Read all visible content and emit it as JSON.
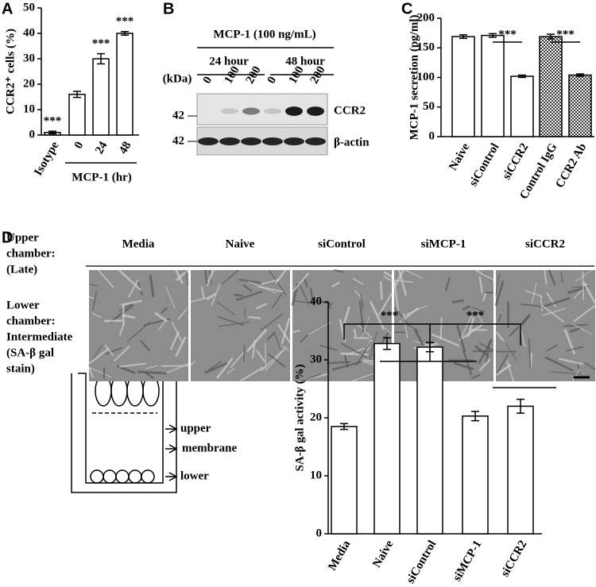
{
  "panel_labels": [
    "A",
    "B",
    "C",
    "D"
  ],
  "chart_data": [
    {
      "type": "bar",
      "categories": [
        "Isotype",
        "0",
        "24",
        "48"
      ],
      "values": [
        1,
        16,
        30,
        40
      ],
      "errors": [
        0.5,
        1.2,
        2,
        0.7
      ],
      "y_label": "CCR2⁺ cells (%)",
      "ylim": [
        0,
        50
      ],
      "yticks": [
        0,
        10,
        20,
        30,
        40,
        50
      ],
      "color": "#ffffff",
      "group_label": "MCP-1 (hr)",
      "annotations": [
        "***",
        "***",
        "***"
      ]
    },
    {
      "type": "bar",
      "categories": [
        "Naive",
        "siControl",
        "siCCR2",
        "Control IgG",
        "CCR2 Ab"
      ],
      "values": [
        169,
        171,
        102,
        169,
        104
      ],
      "errors": [
        3,
        3,
        2,
        4,
        2
      ],
      "y_label": "MCP-1 secretion (pg/ml)",
      "ylim": [
        0,
        200
      ],
      "yticks": [
        0,
        50,
        100,
        150,
        200
      ],
      "color": "#ffffff",
      "checkered": [
        false,
        false,
        false,
        true,
        true
      ],
      "annotations": [
        "***",
        "***"
      ]
    },
    {
      "type": "bar",
      "categories": [
        "Media",
        "Naive",
        "siControl",
        "siMCP-1",
        "siCCR2"
      ],
      "values": [
        18.5,
        32.8,
        32.2,
        20.3,
        22
      ],
      "errors": [
        0.5,
        1,
        0.8,
        0.8,
        1.2
      ],
      "y_label": "SA-β gal activity (%)",
      "ylim": [
        0,
        40
      ],
      "yticks": [
        0,
        10,
        20,
        30,
        40
      ],
      "color": "#ffffff",
      "annotations": [
        "***",
        "***"
      ]
    }
  ],
  "blot": {
    "treatment": "MCP-1 (100 ng/mL)",
    "timepoints": [
      "24 hour",
      "48 hour"
    ],
    "unit": "(kDa)",
    "lanes": [
      "0",
      "100",
      "200",
      "0",
      "100",
      "200"
    ],
    "markers": [
      "42",
      "42"
    ],
    "proteins": [
      "CCR2",
      "β-actin"
    ]
  },
  "images": {
    "row_labels": [
      "Upper",
      "chamber:",
      "(Late)",
      "Lower",
      "chamber:",
      "Intermediate",
      "(SA-β gal",
      "stain)"
    ],
    "columns": [
      "Media",
      "Naive",
      "siControl",
      "siMCP-1",
      "siCCR2"
    ]
  },
  "diagram": {
    "labels": [
      "upper",
      "membrane",
      "lower"
    ]
  }
}
